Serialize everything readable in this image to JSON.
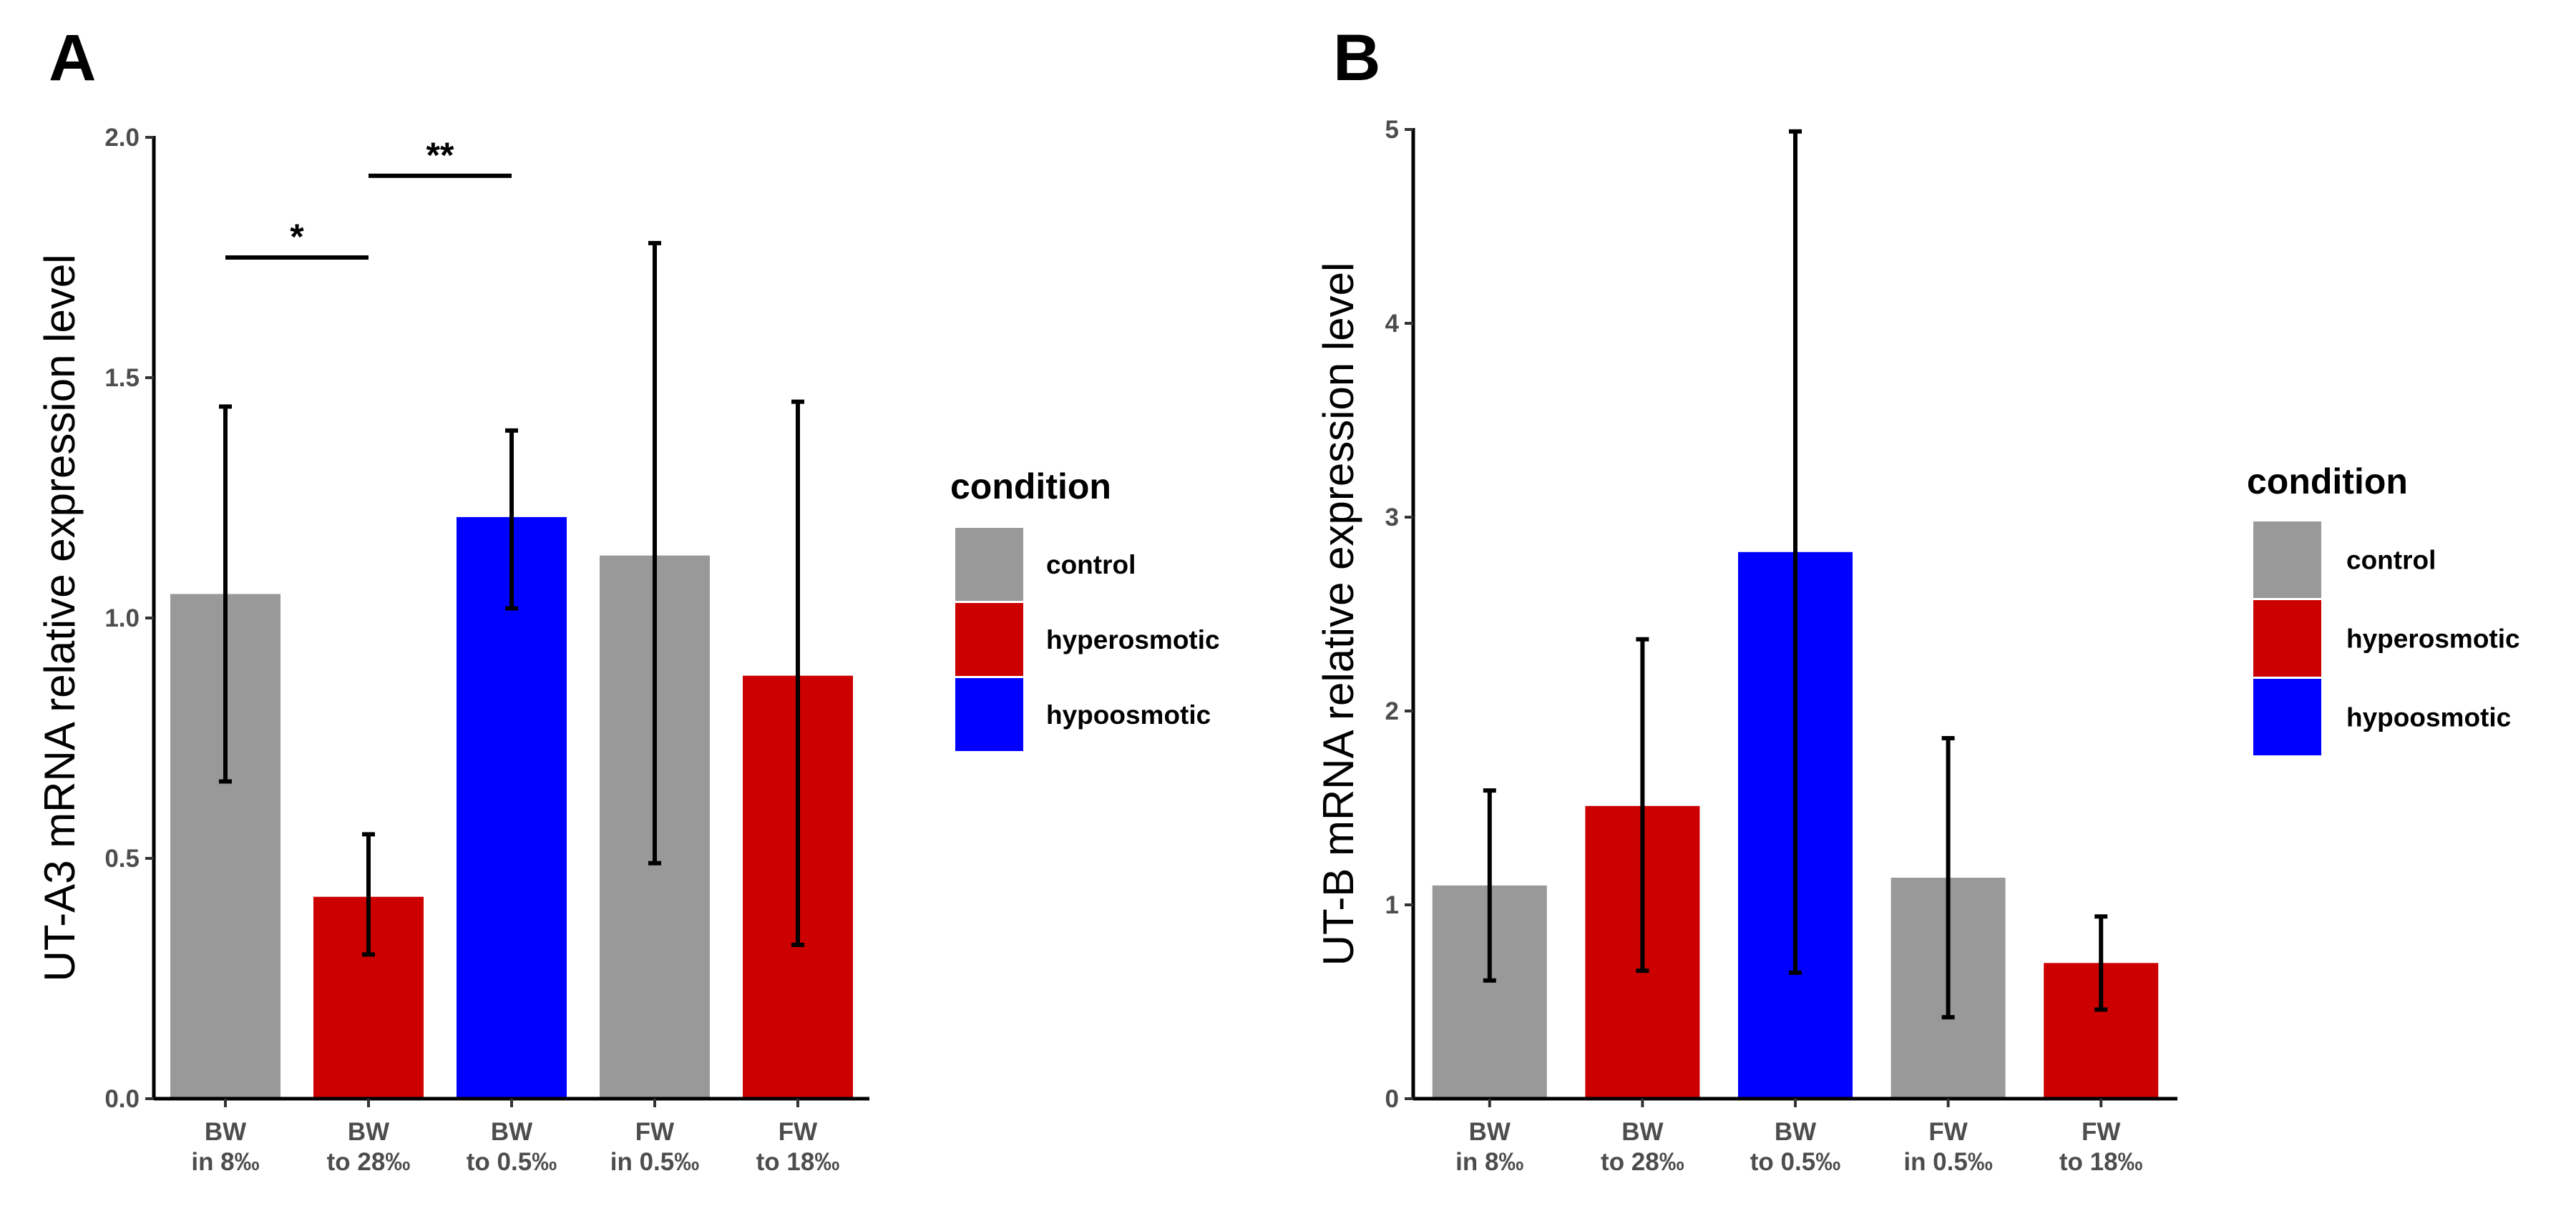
{
  "figure": {
    "panels": [
      {
        "letter": "A"
      },
      {
        "letter": "B"
      }
    ]
  },
  "colors": {
    "control": "#999999",
    "hyperosmotic": "#CC0000",
    "hypoosmotic": "#0000FF",
    "axis": "#000000",
    "tick_text": "#4d4d4d"
  },
  "chart_data": [
    {
      "type": "bar",
      "panel": "A",
      "title": "",
      "xlabel": "",
      "ylabel": "UT-A3 mRNA relative expression level",
      "ylim": [
        0,
        2.0
      ],
      "yticks": [
        0.0,
        0.5,
        1.0,
        1.5,
        2.0
      ],
      "ytick_labels": [
        "0.0",
        "0.5",
        "1.0",
        "1.5",
        "2.0"
      ],
      "categories": [
        {
          "line1": "BW",
          "line2": "in 8‰"
        },
        {
          "line1": "BW",
          "line2": "to 28‰"
        },
        {
          "line1": "BW",
          "line2": "to 0.5‰"
        },
        {
          "line1": "FW",
          "line2": "in 0.5‰"
        },
        {
          "line1": "FW",
          "line2": "to 18‰"
        }
      ],
      "values": [
        1.05,
        0.42,
        1.21,
        1.13,
        0.88
      ],
      "err_low": [
        0.66,
        0.3,
        1.02,
        0.49,
        0.32
      ],
      "err_high": [
        1.44,
        0.55,
        1.39,
        1.78,
        1.45
      ],
      "conditions": [
        "control",
        "hyperosmotic",
        "hypoosmotic",
        "control",
        "hyperosmotic"
      ],
      "significance": [
        {
          "from": 0,
          "to": 1,
          "y": 1.75,
          "label": "*"
        },
        {
          "from": 1,
          "to": 2,
          "y": 1.92,
          "label": "**"
        }
      ],
      "grid": false,
      "legend": {
        "title": "condition",
        "position": "right",
        "entries": [
          {
            "key": "control",
            "label": "control"
          },
          {
            "key": "hyperosmotic",
            "label": "hyperosmotic"
          },
          {
            "key": "hypoosmotic",
            "label": "hypoosmotic"
          }
        ]
      }
    },
    {
      "type": "bar",
      "panel": "B",
      "title": "",
      "xlabel": "",
      "ylabel": "UT-B mRNA relative expression level",
      "ylim": [
        0,
        5
      ],
      "yticks": [
        0,
        1,
        2,
        3,
        4,
        5
      ],
      "ytick_labels": [
        "0",
        "1",
        "2",
        "3",
        "4",
        "5"
      ],
      "categories": [
        {
          "line1": "BW",
          "line2": "in 8‰"
        },
        {
          "line1": "BW",
          "line2": "to 28‰"
        },
        {
          "line1": "BW",
          "line2": "to 0.5‰"
        },
        {
          "line1": "FW",
          "line2": "in 0.5‰"
        },
        {
          "line1": "FW",
          "line2": "to 18‰"
        }
      ],
      "values": [
        1.1,
        1.51,
        2.82,
        1.14,
        0.7
      ],
      "err_low": [
        0.61,
        0.66,
        0.65,
        0.42,
        0.46
      ],
      "err_high": [
        1.59,
        2.37,
        4.99,
        1.86,
        0.94
      ],
      "conditions": [
        "control",
        "hyperosmotic",
        "hypoosmotic",
        "control",
        "hyperosmotic"
      ],
      "significance": [],
      "grid": false,
      "legend": {
        "title": "condition",
        "position": "right",
        "entries": [
          {
            "key": "control",
            "label": "control"
          },
          {
            "key": "hyperosmotic",
            "label": "hyperosmotic"
          },
          {
            "key": "hypoosmotic",
            "label": "hypoosmotic"
          }
        ]
      }
    }
  ]
}
